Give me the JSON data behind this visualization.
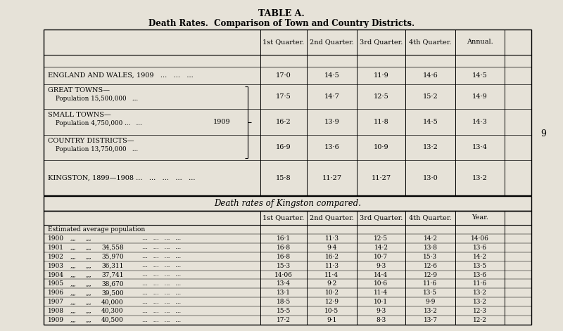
{
  "title1": "TABLE A.",
  "title2": "Death Rates.  Comparison of Town and Country Districts.",
  "bg_color": "#e6e2d8",
  "table1_headers": [
    "1st Quarter.",
    "2nd Quarter.",
    "3rd Quarter.",
    "4th Quarter.",
    "Annual."
  ],
  "table2_headers": [
    "1st Quarter.",
    "2nd Quarter.",
    "3rd Quarter.",
    "4th Quarter.",
    "Year."
  ],
  "table2_title": "Death rates of Kingston compared.",
  "side_number": "9",
  "t1_rows": [
    {
      "main": "ENGLAND AND WALES, 1909   ...   ...   ...",
      "sub": null,
      "vals": [
        "17·0",
        "14·5",
        "11·9",
        "14·6",
        "14·5"
      ]
    },
    {
      "main": "GREAT TOWNS—",
      "sub": "    Population 15,500,000   ...",
      "vals": [
        "17·5",
        "14·7",
        "12·5",
        "15·2",
        "14·9"
      ]
    },
    {
      "main": "SMALL TOWNS—",
      "sub": "    Population 4,750,000 ...   ...",
      "vals": [
        "16·2",
        "13·9",
        "11·8",
        "14·5",
        "14·3"
      ]
    },
    {
      "main": "COUNTRY DISTRICTS—",
      "sub": "    Population 13,750,000   ...",
      "vals": [
        "16·9",
        "13·6",
        "10·9",
        "13·2",
        "13·4"
      ]
    },
    {
      "main": "KINGSTON, 1899—1908 ...   ...   ...   ...   ...",
      "sub": null,
      "vals": [
        "15·8",
        "11·27",
        "11·27",
        "13·0",
        "13·2"
      ]
    }
  ],
  "t2_rows": [
    {
      "label": "Estimated average population",
      "pop": "",
      "vals": [
        "",
        "",
        "",
        "",
        ""
      ]
    },
    {
      "label": "1900",
      "pop": "",
      "vals": [
        "16·1",
        "11·3",
        "12·5",
        "14·2",
        "14·06"
      ]
    },
    {
      "label": "1901",
      "pop": "34,558",
      "vals": [
        "16·8",
        "9·4",
        "14·2",
        "13·8",
        "13·6"
      ]
    },
    {
      "label": "1902",
      "pop": "35,970",
      "vals": [
        "16·8",
        "16·2",
        "10·7",
        "15·3",
        "14·2"
      ]
    },
    {
      "label": "1903",
      "pop": "36,311",
      "vals": [
        "15·3",
        "11·3",
        "9·3",
        "12·6",
        "13·5"
      ]
    },
    {
      "label": "1904",
      "pop": "37,741",
      "vals": [
        "14·06",
        "11·4",
        "14·4",
        "12·9",
        "13·6"
      ]
    },
    {
      "label": "1905",
      "pop": "38,670",
      "vals": [
        "13·4",
        "9·2",
        "10·6",
        "11·6",
        "11·6"
      ]
    },
    {
      "label": "1906",
      "pop": "39,500",
      "vals": [
        "13·1",
        "10·2",
        "11·4",
        "13·5",
        "13·2"
      ]
    },
    {
      "label": "1907",
      "pop": "40,000",
      "vals": [
        "18·5",
        "12·9",
        "10·1",
        "9·9",
        "13·2"
      ]
    },
    {
      "label": "1908",
      "pop": "40,300",
      "vals": [
        "15·5",
        "10·5",
        "9·3",
        "13·2",
        "12·3"
      ]
    },
    {
      "label": "1909",
      "pop": "40,500",
      "vals": [
        "17·2",
        "9·1",
        "8·3",
        "13·7",
        "12·2"
      ]
    }
  ]
}
